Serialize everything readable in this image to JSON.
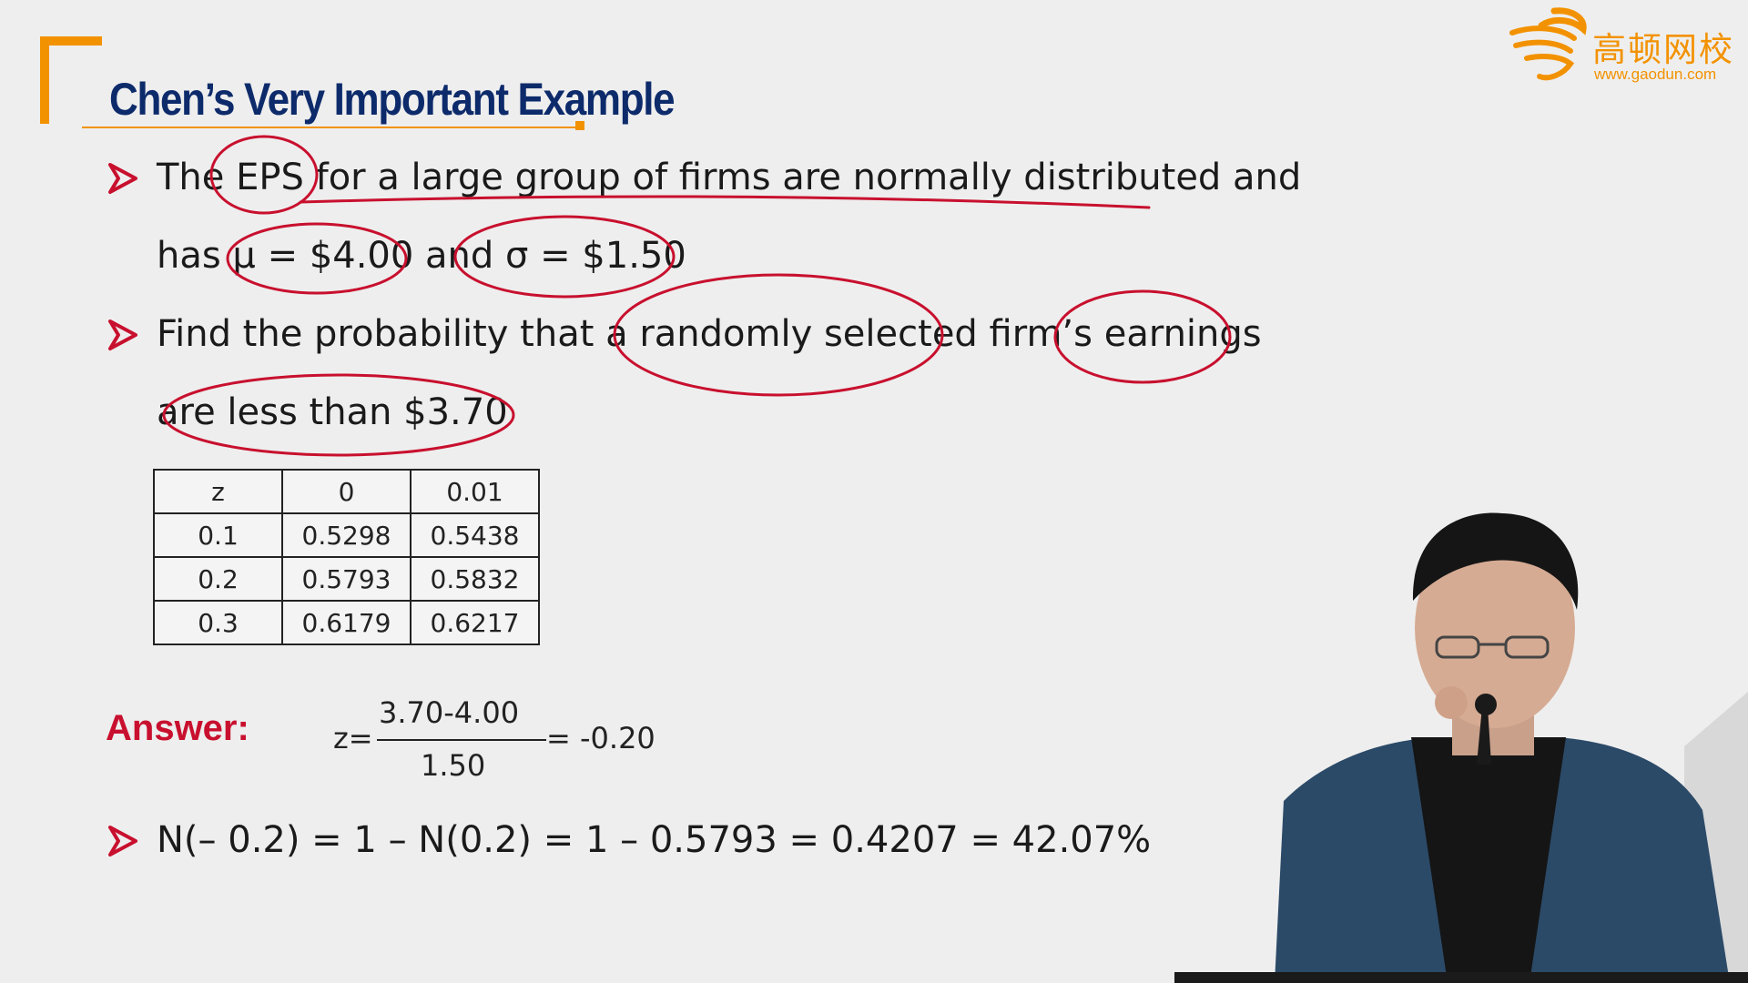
{
  "slide": {
    "title": "Chen’s Very Important Example",
    "logo": {
      "name_cn": "高顿网校",
      "url": "www.gaodun.com"
    },
    "bullets": [
      {
        "line1": "The EPS for a large group of firms are normally distributed and",
        "line2": "has μ = $4.00 and σ = $1.50"
      },
      {
        "line1": "Find the probability that a randomly selected firm’s earnings",
        "line2": "are less than $3.70"
      }
    ],
    "table": {
      "header": [
        "z",
        "0",
        "0.01"
      ],
      "rows": [
        [
          "0.1",
          "0.5298",
          "0.5438"
        ],
        [
          "0.2",
          "0.5793",
          "0.5832"
        ],
        [
          "0.3",
          "0.6179",
          "0.6217"
        ]
      ]
    },
    "answer": {
      "label": "Answer:",
      "z_prefix": "z=",
      "numerator": "3.70-4.00",
      "denominator": "1.50",
      "result": "= -0.20"
    },
    "conclusion": "N(– 0.2) = 1 – N(0.2) = 1 – 0.5793 = 0.4207 = 42.07%",
    "colors": {
      "accent_orange": "#f39200",
      "title_navy": "#0d2b6b",
      "answer_red": "#c8102e",
      "annotation_red": "#c8102e"
    }
  }
}
